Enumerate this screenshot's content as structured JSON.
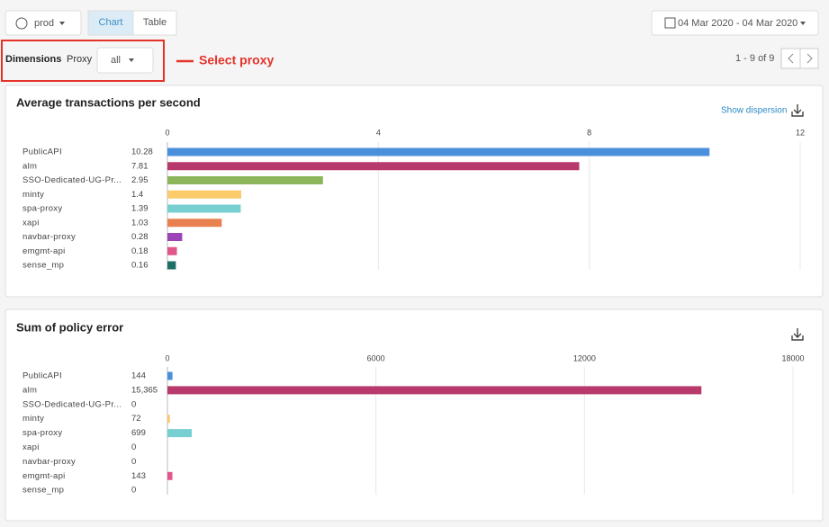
{
  "ui": {
    "env": "prod",
    "tab_chart": "Chart",
    "tab_table": "Table",
    "date_range": "04 Mar 2020 - 04 Mar 2020",
    "dimensions": "Dimensions",
    "proxy_label": "Proxy",
    "proxy_value": "all",
    "annotation": "Select proxy",
    "pager": "1 - 9 of 9",
    "show_dispersion": "Show dispersion"
  },
  "chart_data": [
    {
      "type": "hbar",
      "title": "Average transactions per second",
      "categories": [
        "PublicAPI",
        "alm",
        "SSO-Dedicated-UG-Pr...",
        "minty",
        "spa-proxy",
        "xapi",
        "navbar-proxy",
        "emgmt-api",
        "sense_mp"
      ],
      "values": [
        10.28,
        7.81,
        2.95,
        1.4,
        1.39,
        1.03,
        0.28,
        0.18,
        0.16
      ],
      "colors": [
        "#4a8fdb",
        "#b83a6c",
        "#8cb55c",
        "#fbca6b",
        "#78cfd2",
        "#e8814f",
        "#9a44b7",
        "#e2578b",
        "#1f6f66"
      ],
      "xlim": [
        0,
        12
      ],
      "xticks": [
        0,
        4,
        8,
        12
      ],
      "grid": true
    },
    {
      "type": "hbar",
      "title": "Sum of policy error",
      "categories": [
        "PublicAPI",
        "alm",
        "SSO-Dedicated-UG-Pr...",
        "minty",
        "spa-proxy",
        "xapi",
        "navbar-proxy",
        "emgmt-api",
        "sense_mp"
      ],
      "values": [
        144,
        15365,
        0,
        72,
        699,
        0,
        0,
        143,
        0
      ],
      "value_labels": [
        "144",
        "15,365",
        "0",
        "72",
        "699",
        "0",
        "0",
        "143",
        "0"
      ],
      "colors": [
        "#4a8fdb",
        "#b83a6c",
        "#8cb55c",
        "#fbca6b",
        "#78cfd2",
        "#e8814f",
        "#9a44b7",
        "#e2578b",
        "#1f6f66"
      ],
      "xlim": [
        0,
        18000
      ],
      "xticks": [
        0,
        6000,
        12000,
        18000
      ],
      "grid": true
    }
  ]
}
